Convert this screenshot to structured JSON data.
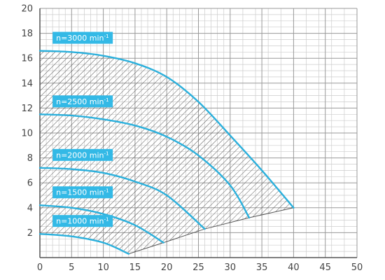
{
  "chart_data": {
    "type": "line",
    "title": "",
    "xlabel": "",
    "ylabel": "",
    "xlim": [
      0,
      50
    ],
    "ylim": [
      0,
      20
    ],
    "x_ticks": [
      0,
      5,
      10,
      15,
      20,
      25,
      30,
      35,
      40,
      45,
      50
    ],
    "y_ticks": [
      2,
      4,
      6,
      8,
      10,
      12,
      14,
      16,
      18,
      20
    ],
    "grid": true,
    "colors": {
      "curve": "#2bb0dc",
      "label_bg": "#33b9e6",
      "grid_major": "#999999",
      "grid_minor": "#cccccc",
      "hatch": "#444444"
    },
    "series": [
      {
        "name": "n=3000 min-1",
        "label_base": "n=3000 min",
        "label_sup": "-1",
        "x": [
          0,
          5,
          10,
          15,
          20,
          25,
          30,
          35,
          40
        ],
        "y": [
          16.6,
          16.5,
          16.2,
          15.6,
          14.5,
          12.5,
          9.8,
          7.0,
          4.0
        ]
      },
      {
        "name": "n=2500 min-1",
        "label_base": "n=2500 min",
        "label_sup": "-1",
        "x": [
          0,
          5,
          10,
          15,
          20,
          25,
          30,
          33
        ],
        "y": [
          11.5,
          11.4,
          11.1,
          10.6,
          9.7,
          8.2,
          5.8,
          3.2
        ]
      },
      {
        "name": "n=2000 min-1",
        "label_base": "n=2000 min",
        "label_sup": "-1",
        "x": [
          0,
          5,
          10,
          15,
          20,
          26
        ],
        "y": [
          7.2,
          7.1,
          6.8,
          6.1,
          5.0,
          2.3
        ]
      },
      {
        "name": "n=1500 min-1",
        "label_base": "n=1500 min",
        "label_sup": "-1",
        "x": [
          0,
          5,
          10,
          15,
          19.5
        ],
        "y": [
          4.2,
          4.0,
          3.5,
          2.6,
          1.2
        ]
      },
      {
        "name": "n=1000 min-1",
        "label_base": "n=1000 min",
        "label_sup": "-1",
        "x": [
          0,
          5,
          10,
          14
        ],
        "y": [
          1.9,
          1.7,
          1.2,
          0.3
        ]
      }
    ],
    "min_boundary": {
      "x": [
        14,
        19.5,
        26,
        33,
        40
      ],
      "y": [
        0.3,
        1.2,
        2.3,
        3.2,
        4.0
      ]
    }
  }
}
